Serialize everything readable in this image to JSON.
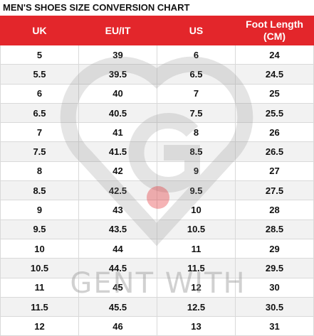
{
  "title": "MEN'S SHOES SIZE CONVERSION CHART",
  "table": {
    "headers": [
      "UK",
      "EU/IT",
      "US",
      "Foot Length (CM)"
    ],
    "rows": [
      [
        5,
        39,
        6,
        24
      ],
      [
        5.5,
        39.5,
        6.5,
        24.5
      ],
      [
        6,
        40,
        7,
        25
      ],
      [
        6.5,
        40.5,
        7.5,
        25.5
      ],
      [
        7,
        41,
        8,
        26
      ],
      [
        7.5,
        41.5,
        8.5,
        26.5
      ],
      [
        8,
        42,
        9,
        27
      ],
      [
        8.5,
        42.5,
        9.5,
        27.5
      ],
      [
        9,
        43,
        10,
        28
      ],
      [
        9.5,
        43.5,
        10.5,
        28.5
      ],
      [
        10,
        44,
        11,
        29
      ],
      [
        10.5,
        44.5,
        11.5,
        29.5
      ],
      [
        11,
        45,
        12,
        30
      ],
      [
        11.5,
        45.5,
        12.5,
        30.5
      ],
      [
        12,
        46,
        13,
        31
      ]
    ]
  },
  "watermark": "GENT WITH"
}
